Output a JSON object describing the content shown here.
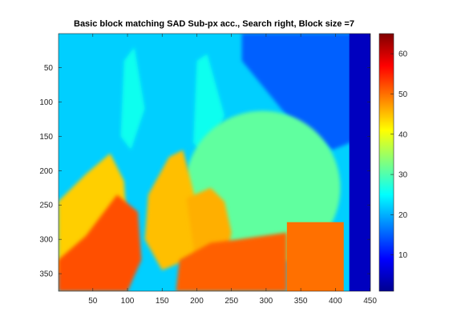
{
  "chart_data": {
    "type": "heatmap",
    "title": "Basic block matching SAD Sub-px acc., Search right, Block size =7",
    "xlabel": "",
    "ylabel": "",
    "xlim": [
      0.5,
      450.5
    ],
    "ylim": [
      0.5,
      375.5
    ],
    "y_direction": "reverse",
    "x_ticks": [
      50,
      100,
      150,
      200,
      250,
      300,
      350,
      400,
      450
    ],
    "y_ticks": [
      50,
      100,
      150,
      200,
      250,
      300,
      350
    ],
    "colormap": "jet",
    "color_range": [
      1,
      65
    ],
    "colorbar": {
      "location": "right",
      "ticks": [
        10,
        20,
        30,
        40,
        50,
        60
      ]
    },
    "regions": [
      {
        "name": "background",
        "value": 22
      },
      {
        "name": "upper-right-lattice",
        "value": 15
      },
      {
        "name": "right-border-band",
        "value": 5
      },
      {
        "name": "left-cone-peak",
        "value": 26
      },
      {
        "name": "center-cone-peak",
        "value": 26
      },
      {
        "name": "large-sphere",
        "value": 31
      },
      {
        "name": "left-cone-body",
        "value": 44
      },
      {
        "name": "middle-cone-body",
        "value": 45
      },
      {
        "name": "right-cone-body",
        "value": 46
      },
      {
        "name": "lower-left-front",
        "value": 52
      },
      {
        "name": "lower-middle-front",
        "value": 51
      },
      {
        "name": "right-box",
        "value": 50
      }
    ]
  }
}
